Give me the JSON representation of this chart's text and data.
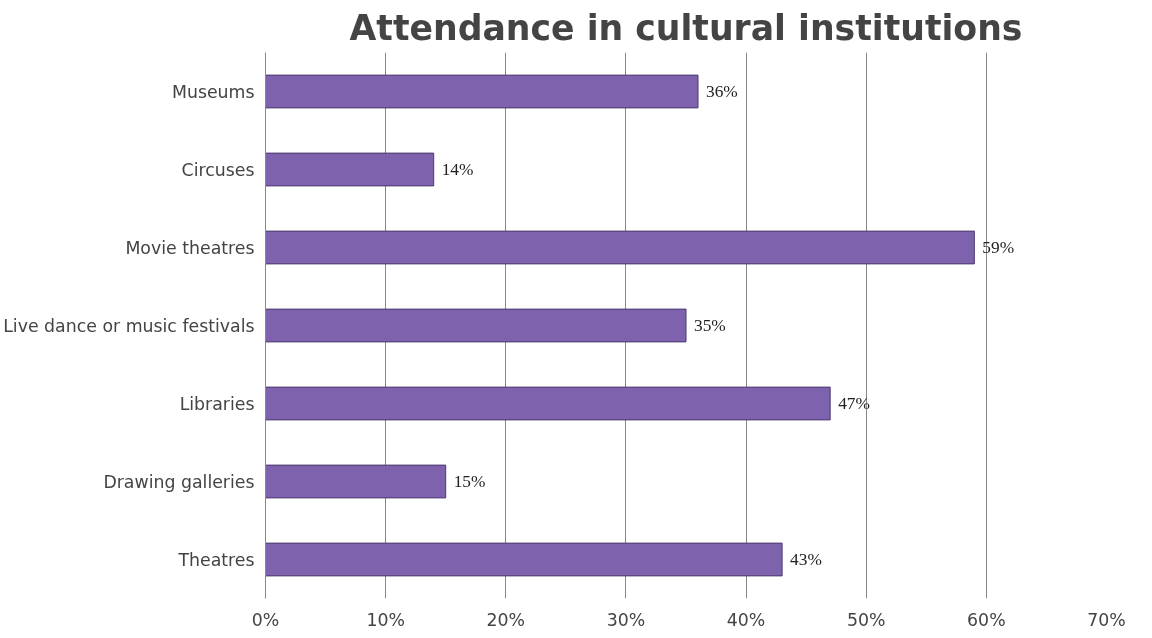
{
  "chart_data": {
    "type": "bar",
    "orientation": "horizontal",
    "title": "Attendance in cultural institutions",
    "categories": [
      "Museums",
      "Circuses",
      "Movie theatres",
      "Live dance or music festivals",
      "Libraries",
      "Drawing galleries",
      "Theatres"
    ],
    "values": [
      36,
      14,
      59,
      35,
      47,
      15,
      43
    ],
    "value_labels": [
      "36%",
      "14%",
      "59%",
      "35%",
      "47%",
      "15%",
      "43%"
    ],
    "color": "#7e62ad",
    "xlim": [
      0,
      70
    ],
    "xticks": [
      {
        "value": 0,
        "label": "0%"
      },
      {
        "value": 10,
        "label": "10%"
      },
      {
        "value": 20,
        "label": "20%"
      },
      {
        "value": 30,
        "label": "30%"
      },
      {
        "value": 40,
        "label": "40%"
      },
      {
        "value": 50,
        "label": "50%"
      },
      {
        "value": 60,
        "label": "60%"
      },
      {
        "value": 70,
        "label": "70%"
      }
    ],
    "grid": "x"
  }
}
